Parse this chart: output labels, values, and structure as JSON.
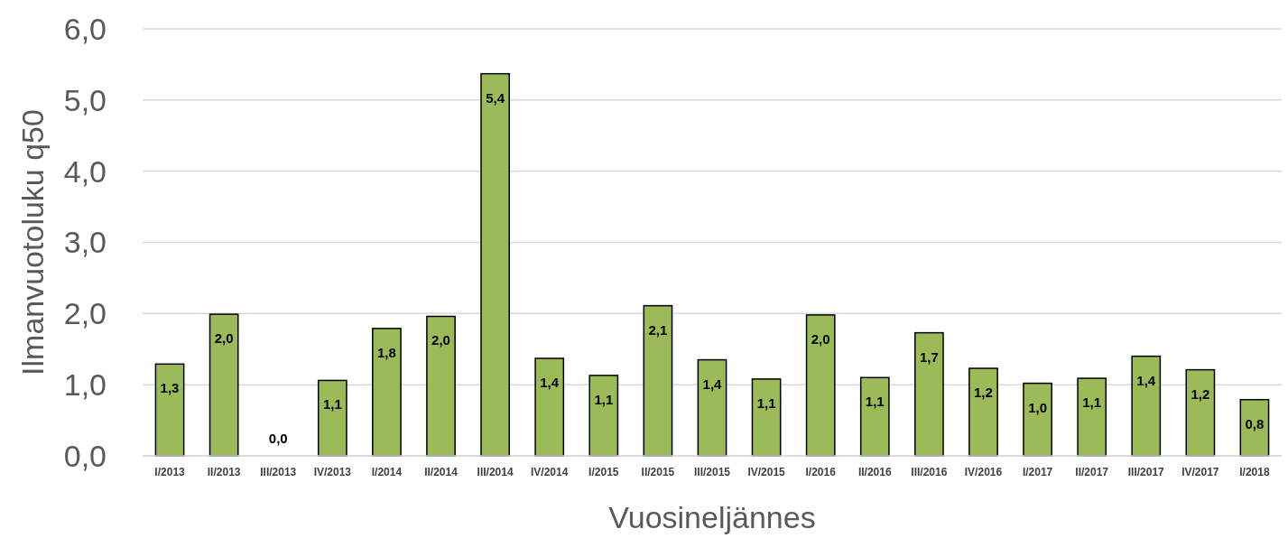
{
  "chart_data": {
    "type": "bar",
    "xlabel": "Vuosineljännes",
    "ylabel": "Ilmanvuotoluku q50",
    "categories": [
      "I/2013",
      "II/2013",
      "III/2013",
      "IV/2013",
      "I/2014",
      "II/2014",
      "III/2014",
      "IV/2014",
      "I/2015",
      "II/2015",
      "III/2015",
      "IV/2015",
      "I/2016",
      "II/2016",
      "III/2016",
      "IV/2016",
      "I/2017",
      "II/2017",
      "III/2017",
      "IV/2017",
      "I/2018"
    ],
    "values": [
      1.29,
      1.99,
      0,
      1.06,
      1.79,
      1.96,
      5.37,
      1.37,
      1.13,
      2.11,
      1.35,
      1.08,
      1.98,
      1.1,
      1.73,
      1.23,
      1.02,
      1.09,
      1.4,
      1.21,
      0.79
    ],
    "value_labels": [
      "1,3",
      "2,0",
      "0,0",
      "1,1",
      "1,8",
      "2,0",
      "5,4",
      "1,4",
      "1,1",
      "2,1",
      "1,4",
      "1,1",
      "2,0",
      "1,1",
      "1,7",
      "1,2",
      "1,0",
      "1,1",
      "1,4",
      "1,2",
      "0,8"
    ],
    "color": "#9bbb59",
    "ylim": [
      0,
      6
    ],
    "yticks": [
      {
        "value": 0,
        "label": "0,0"
      },
      {
        "value": 1,
        "label": "1,0"
      },
      {
        "value": 2,
        "label": "2,0"
      },
      {
        "value": 3,
        "label": "3,0"
      },
      {
        "value": 4,
        "label": "4,0"
      },
      {
        "value": 5,
        "label": "5,0"
      },
      {
        "value": 6,
        "label": "6,0"
      }
    ],
    "grid": "y"
  }
}
